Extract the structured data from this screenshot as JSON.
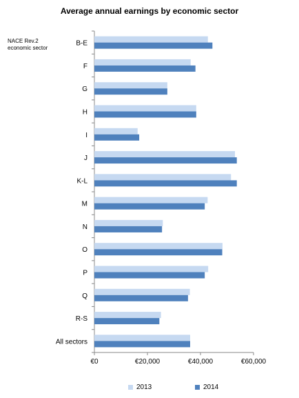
{
  "chart_data": {
    "type": "bar",
    "orientation": "horizontal",
    "title": "Average annual earnings by economic sector",
    "ylabel": [
      "NACE Rev.2",
      "economic sector"
    ],
    "xlabel": "",
    "categories": [
      "B-E",
      "F",
      "G",
      "H",
      "I",
      "J",
      "K-L",
      "M",
      "N",
      "O",
      "P",
      "Q",
      "R-S",
      "All sectors"
    ],
    "series": [
      {
        "name": "2013",
        "color": "#c6d9f1",
        "values": [
          42800,
          36300,
          27500,
          38400,
          16300,
          53000,
          51500,
          42700,
          25800,
          48300,
          42900,
          36000,
          25100,
          36100
        ]
      },
      {
        "name": "2014",
        "color": "#4f81bd",
        "values": [
          44500,
          38100,
          27500,
          38400,
          16900,
          53700,
          53700,
          41600,
          25500,
          48200,
          41600,
          35300,
          24500,
          36100
        ]
      }
    ],
    "xlim": [
      0,
      60000
    ],
    "xticks": [
      {
        "value": 0,
        "label": "€0"
      },
      {
        "value": 20000,
        "label": "€20,000"
      },
      {
        "value": 40000,
        "label": "€40,000"
      },
      {
        "value": 60000,
        "label": "€60,000"
      }
    ],
    "grid": false,
    "legend": "bottom"
  }
}
